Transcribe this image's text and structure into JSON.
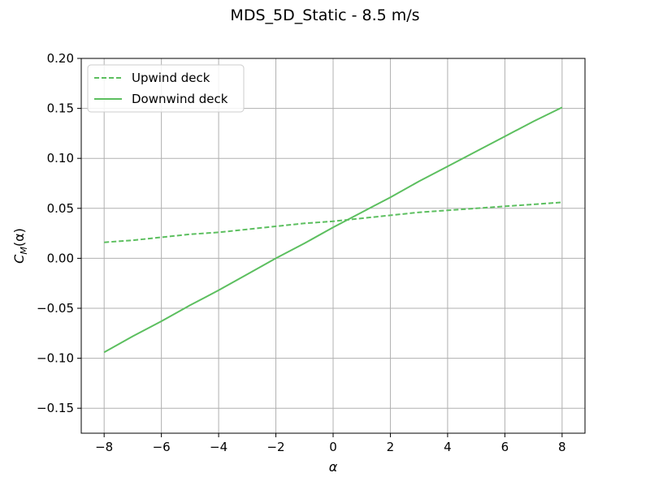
{
  "chart_data": {
    "type": "line",
    "title": "MDS_5D_Static - 8.5 m/s",
    "xlabel": "α",
    "ylabel": "C_M(α)",
    "xlim": [
      -8.8,
      8.8
    ],
    "ylim": [
      -0.175,
      0.2
    ],
    "xticks": [
      -8,
      -6,
      -4,
      -2,
      0,
      2,
      4,
      6,
      8
    ],
    "xtick_labels": [
      "−8",
      "−6",
      "−4",
      "−2",
      "0",
      "2",
      "4",
      "6",
      "8"
    ],
    "yticks": [
      -0.15,
      -0.1,
      -0.05,
      0.0,
      0.05,
      0.1,
      0.15,
      0.2
    ],
    "ytick_labels": [
      "−0.15",
      "−0.10",
      "−0.05",
      "0.00",
      "0.05",
      "0.10",
      "0.15",
      "0.20"
    ],
    "grid": true,
    "legend_position": "top-left",
    "series": [
      {
        "name": "Upwind deck",
        "style": "dashed",
        "color": "#5cbf5f",
        "x": [
          -8,
          -7,
          -6,
          -5,
          -4,
          -3,
          -2,
          -1,
          0,
          1,
          2,
          3,
          4,
          5,
          6,
          7,
          8
        ],
        "y": [
          0.016,
          0.018,
          0.021,
          0.024,
          0.026,
          0.029,
          0.032,
          0.035,
          0.037,
          0.04,
          0.043,
          0.046,
          0.048,
          0.05,
          0.052,
          0.054,
          0.056
        ]
      },
      {
        "name": "Downwind deck",
        "style": "solid",
        "color": "#5cbf5f",
        "x": [
          -8,
          -7,
          -6,
          -5,
          -4,
          -3,
          -2,
          -1,
          0,
          1,
          2,
          3,
          4,
          5,
          6,
          7,
          8
        ],
        "y": [
          -0.094,
          -0.078,
          -0.063,
          -0.047,
          -0.032,
          -0.016,
          0.0,
          0.015,
          0.031,
          0.046,
          0.061,
          0.077,
          0.092,
          0.107,
          0.122,
          0.137,
          0.151
        ]
      }
    ]
  }
}
